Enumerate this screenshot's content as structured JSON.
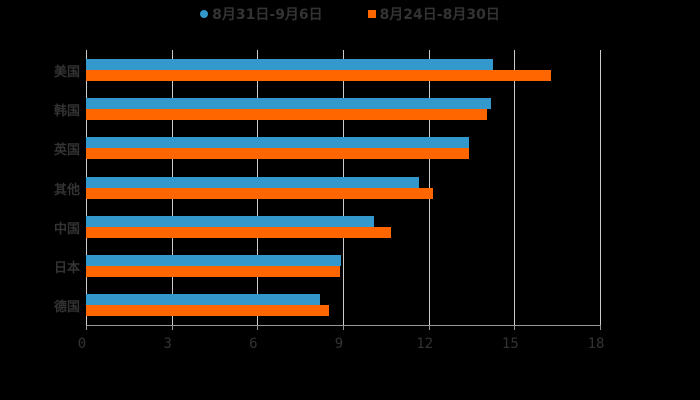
{
  "legend": [
    {
      "label": "8月31日-9月6日",
      "color": "#3399cc",
      "shape": "circle"
    },
    {
      "label": "8月24日-8月30日",
      "color": "#ff6600",
      "shape": "square"
    }
  ],
  "xaxis": {
    "ticks": [
      "0",
      "3",
      "6",
      "9",
      "12",
      "15",
      "18"
    ]
  },
  "categories": [
    "美国",
    "韩国",
    "英国",
    "其他",
    "中国",
    "日本",
    "德国"
  ],
  "chart_data": {
    "type": "bar",
    "orientation": "horizontal",
    "title": "",
    "xlabel": "",
    "ylabel": "",
    "categories": [
      "美国",
      "韩国",
      "英国",
      "其他",
      "中国",
      "日本",
      "德国"
    ],
    "series": [
      {
        "name": "8月31日-9月6日",
        "color": "#3399cc",
        "values": [
          14.26,
          14.19,
          13.41,
          11.66,
          10.09,
          8.93,
          8.2
        ]
      },
      {
        "name": "8月24日-8月30日",
        "color": "#ff6600",
        "values": [
          16.29,
          14.05,
          13.41,
          12.15,
          10.68,
          8.9,
          8.51
        ]
      }
    ],
    "xlim": [
      0,
      18
    ],
    "xticks": [
      0,
      3,
      6,
      9,
      12,
      15,
      18
    ],
    "grid": true,
    "legend_position": "top"
  }
}
